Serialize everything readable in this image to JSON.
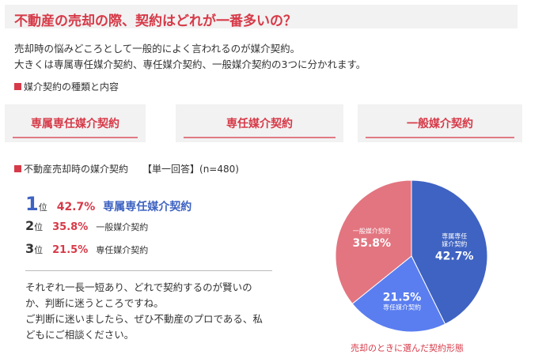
{
  "header": {
    "title": "不動産の売却の際、契約はどれが一番多いの？"
  },
  "intro": {
    "line1": "売却時の悩みどころとして一般的によく言われるのが媒介契約。",
    "line2": "大きくは専属専任媒介契約、専任媒介契約、一般媒介契約の3つに分かれます。"
  },
  "section_label": "媒介契約の種類と内容",
  "types": [
    "専属専任媒介契約",
    "専任媒介契約",
    "一般媒介契約"
  ],
  "survey": {
    "label": "不動産売却時の媒介契約",
    "qualifier": "【単一回答】(n=480)"
  },
  "ranks": [
    {
      "num": "1",
      "suffix": "位",
      "pct": "42.7%",
      "type": "専属専任媒介契約"
    },
    {
      "num": "2",
      "suffix": "位",
      "pct": "35.8%",
      "type": "一般媒介契約"
    },
    {
      "num": "3",
      "suffix": "位",
      "pct": "21.5%",
      "type": "専任媒介契約"
    }
  ],
  "closing": {
    "line1": "それぞれ一長一短あり、どれで契約するのが賢いの",
    "line2": "か、判断に迷うところですね。",
    "line3": "ご判断に迷いましたら、ぜひ不動産のプロである、私",
    "line4": "どもにご相談ください。"
  },
  "colors": {
    "accent": "#d63a48",
    "blue_dark": "#3f63c2",
    "blue_light": "#5a7ef0",
    "pink": "#e27580"
  },
  "chart_data": {
    "type": "pie",
    "title": "",
    "caption": "売却のときに選んだ契約形態",
    "slices": [
      {
        "label_lines": [
          "専属専任",
          "媒介契約"
        ],
        "value": 42.7,
        "value_text": "42.7%",
        "color": "#3f63c2"
      },
      {
        "label_lines": [
          "専任媒介契約"
        ],
        "value": 21.5,
        "value_text": "21.5%",
        "color": "#5a7ef0"
      },
      {
        "label_lines": [
          "一般媒介契約"
        ],
        "value": 35.8,
        "value_text": "35.8%",
        "color": "#e27580"
      }
    ]
  }
}
